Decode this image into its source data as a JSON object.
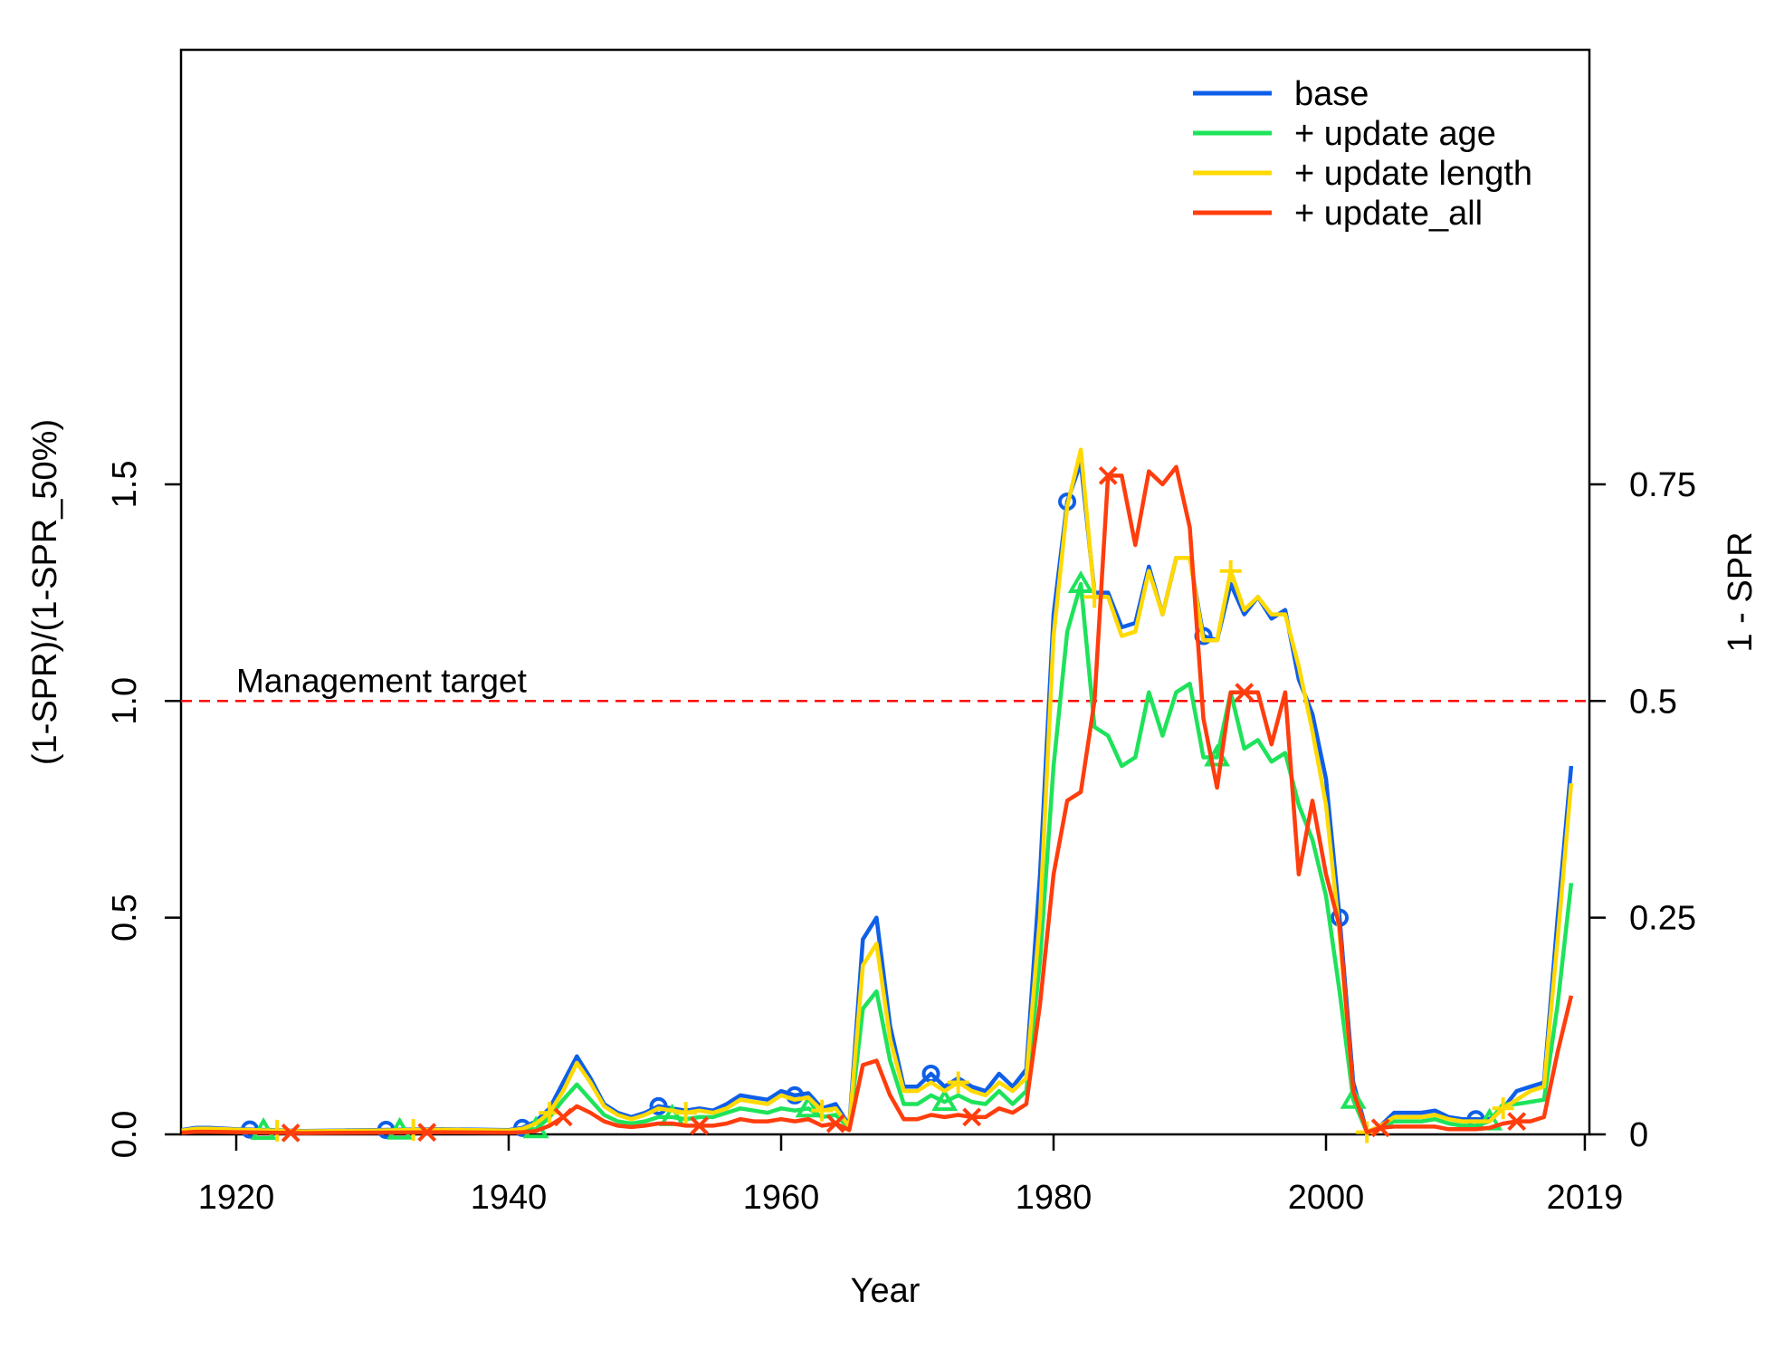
{
  "chart_data": {
    "type": "line",
    "xlabel": "Year",
    "ylabel": "(1-SPR)/(1-SPR_50%)",
    "ylabel_right": "1 - SPR",
    "xlim": [
      1916,
      2019
    ],
    "ylim": [
      0,
      1.65
    ],
    "x_ticks": [
      1920,
      1940,
      1960,
      1980,
      2000,
      2019
    ],
    "y_ticks": [
      0.0,
      0.5,
      1.0,
      1.5
    ],
    "y_tick_labels": [
      "0.0",
      "0.5",
      "1.0",
      "1.5"
    ],
    "y2_ticks": [
      0,
      0.25,
      0.5,
      0.75
    ],
    "y2_tick_labels": [
      "0",
      "0.25",
      "0.5",
      "0.75"
    ],
    "annotation": {
      "text": "Management target",
      "x": 1920,
      "y": 1.0
    },
    "reference_line": {
      "y": 1.0,
      "color": "#ff0000",
      "style": "dashed"
    },
    "legend_position": "top-right",
    "series": [
      {
        "name": "base",
        "color": "#0f5fe8",
        "marker": "circle",
        "marker_years": [
          1921,
          1931,
          1941,
          1951,
          1961,
          1971,
          1981,
          1991,
          2001,
          2011
        ],
        "x": [
          1916,
          1917,
          1918,
          1920,
          1925,
          1930,
          1935,
          1940,
          1941,
          1942,
          1943,
          1944,
          1945,
          1946,
          1947,
          1948,
          1949,
          1950,
          1951,
          1952,
          1953,
          1954,
          1955,
          1956,
          1957,
          1958,
          1959,
          1960,
          1961,
          1962,
          1963,
          1964,
          1965,
          1966,
          1967,
          1968,
          1969,
          1970,
          1971,
          1972,
          1973,
          1974,
          1975,
          1976,
          1977,
          1978,
          1979,
          1980,
          1981,
          1982,
          1983,
          1984,
          1985,
          1986,
          1987,
          1988,
          1989,
          1990,
          1991,
          1992,
          1993,
          1994,
          1995,
          1996,
          1997,
          1998,
          1999,
          2000,
          2001,
          2002,
          2003,
          2004,
          2005,
          2006,
          2007,
          2008,
          2009,
          2010,
          2011,
          2012,
          2013,
          2014,
          2015,
          2016,
          2017,
          2018
        ],
        "y": [
          0.01,
          0.015,
          0.015,
          0.012,
          0.008,
          0.01,
          0.012,
          0.01,
          0.015,
          0.03,
          0.06,
          0.12,
          0.18,
          0.13,
          0.07,
          0.05,
          0.04,
          0.05,
          0.065,
          0.06,
          0.055,
          0.06,
          0.055,
          0.07,
          0.09,
          0.085,
          0.08,
          0.1,
          0.09,
          0.095,
          0.06,
          0.07,
          0.02,
          0.45,
          0.5,
          0.25,
          0.11,
          0.11,
          0.14,
          0.11,
          0.13,
          0.11,
          0.1,
          0.14,
          0.11,
          0.15,
          0.6,
          1.2,
          1.46,
          1.55,
          1.25,
          1.25,
          1.17,
          1.18,
          1.31,
          1.2,
          1.33,
          1.33,
          1.15,
          1.14,
          1.27,
          1.2,
          1.24,
          1.19,
          1.21,
          1.05,
          0.97,
          0.82,
          0.5,
          0.12,
          0.005,
          0.02,
          0.05,
          0.05,
          0.05,
          0.055,
          0.04,
          0.035,
          0.035,
          0.035,
          0.06,
          0.1,
          0.11,
          0.12,
          0.5,
          0.85
        ]
      },
      {
        "name": "+ update age",
        "color": "#1ee35a",
        "marker": "triangle",
        "marker_years": [
          1922,
          1932,
          1942,
          1952,
          1962,
          1972,
          1982,
          1992,
          2002,
          2012
        ],
        "x": [
          1916,
          1917,
          1918,
          1920,
          1925,
          1930,
          1935,
          1940,
          1941,
          1942,
          1943,
          1944,
          1945,
          1946,
          1947,
          1948,
          1949,
          1950,
          1951,
          1952,
          1953,
          1954,
          1955,
          1956,
          1957,
          1958,
          1959,
          1960,
          1961,
          1962,
          1963,
          1964,
          1965,
          1966,
          1967,
          1968,
          1969,
          1970,
          1971,
          1972,
          1973,
          1974,
          1975,
          1976,
          1977,
          1978,
          1979,
          1980,
          1981,
          1982,
          1983,
          1984,
          1985,
          1986,
          1987,
          1988,
          1989,
          1990,
          1991,
          1992,
          1993,
          1994,
          1995,
          1996,
          1997,
          1998,
          1999,
          2000,
          2001,
          2002,
          2003,
          2004,
          2005,
          2006,
          2007,
          2008,
          2009,
          2010,
          2011,
          2012,
          2013,
          2014,
          2015,
          2016,
          2017,
          2018
        ],
        "y": [
          0.008,
          0.012,
          0.012,
          0.01,
          0.006,
          0.008,
          0.01,
          0.008,
          0.01,
          0.012,
          0.04,
          0.08,
          0.115,
          0.08,
          0.045,
          0.03,
          0.025,
          0.03,
          0.04,
          0.04,
          0.035,
          0.04,
          0.04,
          0.05,
          0.06,
          0.055,
          0.05,
          0.06,
          0.055,
          0.06,
          0.04,
          0.045,
          0.015,
          0.29,
          0.33,
          0.17,
          0.07,
          0.07,
          0.09,
          0.075,
          0.09,
          0.075,
          0.07,
          0.1,
          0.07,
          0.1,
          0.4,
          0.85,
          1.16,
          1.27,
          0.94,
          0.92,
          0.85,
          0.87,
          1.02,
          0.92,
          1.02,
          1.04,
          0.87,
          0.87,
          1.02,
          0.89,
          0.91,
          0.86,
          0.88,
          0.76,
          0.68,
          0.55,
          0.33,
          0.08,
          0.005,
          0.015,
          0.03,
          0.03,
          0.03,
          0.035,
          0.025,
          0.02,
          0.02,
          0.03,
          0.07,
          0.07,
          0.075,
          0.08,
          0.3,
          0.58
        ]
      },
      {
        "name": " + update length",
        "color": "#ffd900",
        "marker": "plus",
        "marker_years": [
          1923,
          1933,
          1943,
          1953,
          1963,
          1973,
          1983,
          1993,
          2003,
          2013
        ],
        "x": [
          1916,
          1917,
          1918,
          1920,
          1925,
          1930,
          1935,
          1940,
          1941,
          1942,
          1943,
          1944,
          1945,
          1946,
          1947,
          1948,
          1949,
          1950,
          1951,
          1952,
          1953,
          1954,
          1955,
          1956,
          1957,
          1958,
          1959,
          1960,
          1961,
          1962,
          1963,
          1964,
          1965,
          1966,
          1967,
          1968,
          1969,
          1970,
          1971,
          1972,
          1973,
          1974,
          1975,
          1976,
          1977,
          1978,
          1979,
          1980,
          1981,
          1982,
          1983,
          1984,
          1985,
          1986,
          1987,
          1988,
          1989,
          1990,
          1991,
          1992,
          1993,
          1994,
          1995,
          1996,
          1997,
          1998,
          1999,
          2000,
          2001,
          2002,
          2003,
          2004,
          2005,
          2006,
          2007,
          2008,
          2009,
          2010,
          2011,
          2012,
          2013,
          2014,
          2015,
          2016,
          2017,
          2018
        ],
        "y": [
          0.009,
          0.013,
          0.013,
          0.011,
          0.007,
          0.009,
          0.011,
          0.009,
          0.013,
          0.025,
          0.05,
          0.1,
          0.165,
          0.12,
          0.065,
          0.045,
          0.035,
          0.045,
          0.06,
          0.055,
          0.05,
          0.055,
          0.05,
          0.06,
          0.08,
          0.075,
          0.07,
          0.09,
          0.08,
          0.085,
          0.055,
          0.06,
          0.018,
          0.39,
          0.44,
          0.22,
          0.1,
          0.1,
          0.12,
          0.1,
          0.12,
          0.1,
          0.09,
          0.12,
          0.1,
          0.13,
          0.5,
          1.15,
          1.45,
          1.58,
          1.24,
          1.24,
          1.15,
          1.16,
          1.3,
          1.2,
          1.33,
          1.33,
          1.14,
          1.14,
          1.3,
          1.21,
          1.24,
          1.2,
          1.2,
          1.08,
          0.93,
          0.76,
          0.46,
          0.1,
          0.005,
          0.02,
          0.04,
          0.04,
          0.04,
          0.045,
          0.035,
          0.03,
          0.03,
          0.03,
          0.06,
          0.08,
          0.1,
          0.11,
          0.45,
          0.81
        ]
      },
      {
        "name": " + update_all",
        "color": "#ff3d0d",
        "marker": "cross",
        "marker_years": [
          1924,
          1934,
          1944,
          1954,
          1964,
          1974,
          1984,
          1994,
          2004,
          2014
        ],
        "x": [
          1916,
          1917,
          1918,
          1920,
          1925,
          1930,
          1935,
          1940,
          1941,
          1942,
          1943,
          1944,
          1945,
          1946,
          1947,
          1948,
          1949,
          1950,
          1951,
          1952,
          1953,
          1954,
          1955,
          1956,
          1957,
          1958,
          1959,
          1960,
          1961,
          1962,
          1963,
          1964,
          1965,
          1966,
          1967,
          1968,
          1969,
          1970,
          1971,
          1972,
          1973,
          1974,
          1975,
          1976,
          1977,
          1978,
          1979,
          1980,
          1981,
          1982,
          1983,
          1984,
          1985,
          1986,
          1987,
          1988,
          1989,
          1990,
          1991,
          1992,
          1993,
          1994,
          1995,
          1996,
          1997,
          1998,
          1999,
          2000,
          2001,
          2002,
          2003,
          2004,
          2005,
          2006,
          2007,
          2008,
          2009,
          2010,
          2011,
          2012,
          2013,
          2014,
          2015,
          2016,
          2017,
          2018
        ],
        "y": [
          0.004,
          0.006,
          0.006,
          0.005,
          0.003,
          0.004,
          0.005,
          0.004,
          0.005,
          0.008,
          0.02,
          0.04,
          0.065,
          0.05,
          0.03,
          0.02,
          0.017,
          0.02,
          0.025,
          0.025,
          0.02,
          0.02,
          0.02,
          0.025,
          0.035,
          0.03,
          0.03,
          0.035,
          0.03,
          0.035,
          0.02,
          0.025,
          0.01,
          0.16,
          0.17,
          0.09,
          0.035,
          0.035,
          0.045,
          0.04,
          0.045,
          0.04,
          0.04,
          0.06,
          0.05,
          0.07,
          0.3,
          0.6,
          0.77,
          0.79,
          1.0,
          1.52,
          1.52,
          1.36,
          1.53,
          1.5,
          1.54,
          1.4,
          0.96,
          0.8,
          1.02,
          1.02,
          1.02,
          0.9,
          1.02,
          0.6,
          0.77,
          0.6,
          0.48,
          0.1,
          0.005,
          0.015,
          0.018,
          0.018,
          0.018,
          0.018,
          0.012,
          0.012,
          0.012,
          0.015,
          0.025,
          0.03,
          0.03,
          0.04,
          0.19,
          0.32
        ]
      }
    ]
  }
}
